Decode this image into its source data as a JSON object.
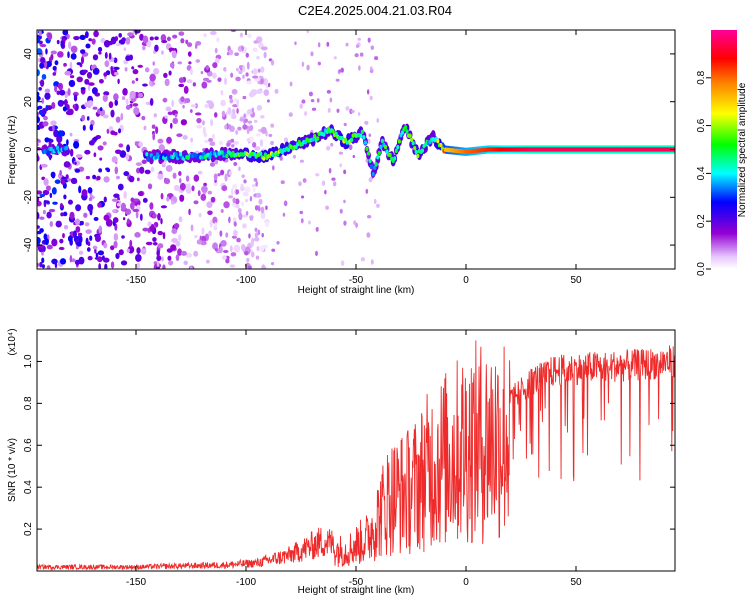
{
  "title": "C2E4.2025.004.21.03.R04",
  "chart_data": [
    {
      "type": "heatmap",
      "title": "C2E4.2025.004.21.03.R04",
      "xlabel": "Height of straight line (km)",
      "ylabel": "Frequency (Hz)",
      "xlim": [
        -195,
        95
      ],
      "ylim": [
        -50,
        50
      ],
      "x_ticks": [
        -150,
        -100,
        -50,
        0,
        50
      ],
      "y_ticks": [
        -40,
        -20,
        0,
        20,
        40
      ],
      "colorbar": {
        "label": "Normalized spectral amplitude",
        "range": [
          0,
          1
        ],
        "ticks": [
          "0.0",
          "0.2",
          "0.4",
          "0.6",
          "0.8"
        ],
        "colors": [
          "#ffffff",
          "#9400d3",
          "#0000ff",
          "#00ffff",
          "#00ff00",
          "#ffff00",
          "#ff8000",
          "#ff0000",
          "#ff00a0"
        ]
      },
      "ridge": [
        {
          "x": -192,
          "y": -1,
          "amp": 0.35
        },
        {
          "x": -185,
          "y": 0,
          "amp": 0.4
        },
        {
          "x": -145,
          "y": -3,
          "amp": 0.35
        },
        {
          "x": -130,
          "y": -3,
          "amp": 0.4
        },
        {
          "x": -110,
          "y": -2,
          "amp": 0.4
        },
        {
          "x": -100,
          "y": -2,
          "amp": 0.5
        },
        {
          "x": -90,
          "y": -3,
          "amp": 0.55
        },
        {
          "x": -80,
          "y": 1,
          "amp": 0.5
        },
        {
          "x": -70,
          "y": 4,
          "amp": 0.45
        },
        {
          "x": -62,
          "y": 8,
          "amp": 0.45
        },
        {
          "x": -55,
          "y": 3,
          "amp": 0.55
        },
        {
          "x": -47,
          "y": 7,
          "amp": 0.45
        },
        {
          "x": -42,
          "y": -10,
          "amp": 0.4
        },
        {
          "x": -38,
          "y": 3,
          "amp": 0.45
        },
        {
          "x": -33,
          "y": -5,
          "amp": 0.45
        },
        {
          "x": -28,
          "y": 10,
          "amp": 0.45
        },
        {
          "x": -22,
          "y": -2,
          "amp": 0.5
        },
        {
          "x": -15,
          "y": 5,
          "amp": 0.4
        },
        {
          "x": -10,
          "y": 0,
          "amp": 0.7
        },
        {
          "x": 0,
          "y": -1,
          "amp": 0.8
        },
        {
          "x": 10,
          "y": 0,
          "amp": 0.85
        },
        {
          "x": 30,
          "y": 0,
          "amp": 0.95
        },
        {
          "x": 60,
          "y": 0,
          "amp": 0.95
        },
        {
          "x": 95,
          "y": 0,
          "amp": 0.95
        }
      ],
      "noise_region": {
        "x_range": [
          -195,
          -110
        ],
        "y_range": [
          -50,
          50
        ],
        "amp": 0.25
      }
    },
    {
      "type": "line",
      "xlabel": "Height of straight line (km)",
      "ylabel": "SNR (10 * v/v)",
      "y_scale_label": "(x10⁴)",
      "xlim": [
        -195,
        95
      ],
      "ylim": [
        0,
        1.15
      ],
      "x_ticks": [
        -150,
        -100,
        -50,
        0,
        50
      ],
      "y_ticks": [
        0.2,
        0.4,
        0.6,
        0.8,
        1.0
      ],
      "color": "#ee2a2a",
      "envelope": {
        "x": [
          -195,
          -150,
          -110,
          -95,
          -80,
          -65,
          -55,
          -45,
          -35,
          -25,
          -15,
          -5,
          0,
          10,
          20,
          30,
          40,
          60,
          80,
          95
        ],
        "y": [
          0.02,
          0.02,
          0.03,
          0.04,
          0.08,
          0.15,
          0.12,
          0.2,
          0.45,
          0.5,
          0.65,
          0.72,
          0.78,
          0.8,
          0.85,
          0.95,
          1.0,
          1.02,
          1.03,
          1.05
        ]
      }
    }
  ]
}
